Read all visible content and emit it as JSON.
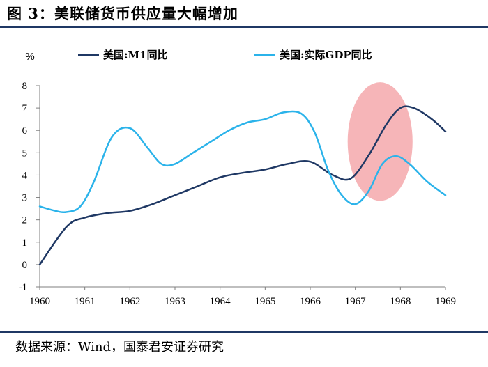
{
  "header": {
    "title": "图 3：美联储货币供应量大幅增加"
  },
  "footer": {
    "source": "数据来源：Wind，国泰君安证券研究"
  },
  "chart_data": {
    "type": "line",
    "unit_label": "%",
    "x": [
      1960,
      1961,
      1962,
      1963,
      1964,
      1965,
      1966,
      1967,
      1968,
      1969
    ],
    "xlim": [
      1960,
      1969
    ],
    "ylim": [
      -1,
      8
    ],
    "yticks": [
      -1,
      0,
      1,
      2,
      3,
      4,
      5,
      6,
      7,
      8
    ],
    "grid": false,
    "legend": "top",
    "series": [
      {
        "name": "美国:M1同比",
        "color": "#1f3864",
        "points": [
          [
            1960.0,
            0.0
          ],
          [
            1960.6,
            1.7
          ],
          [
            1961.0,
            2.1
          ],
          [
            1961.5,
            2.3
          ],
          [
            1962.0,
            2.4
          ],
          [
            1962.5,
            2.7
          ],
          [
            1963.0,
            3.1
          ],
          [
            1963.5,
            3.5
          ],
          [
            1964.0,
            3.9
          ],
          [
            1964.5,
            4.1
          ],
          [
            1965.0,
            4.25
          ],
          [
            1965.5,
            4.5
          ],
          [
            1966.0,
            4.6
          ],
          [
            1966.5,
            4.0
          ],
          [
            1966.9,
            3.85
          ],
          [
            1967.3,
            4.9
          ],
          [
            1967.7,
            6.3
          ],
          [
            1968.0,
            7.0
          ],
          [
            1968.3,
            7.0
          ],
          [
            1968.7,
            6.5
          ],
          [
            1969.0,
            5.95
          ]
        ]
      },
      {
        "name": "美国:实际GDP同比",
        "color": "#2bb3ea",
        "points": [
          [
            1960.0,
            2.6
          ],
          [
            1960.35,
            2.4
          ],
          [
            1960.6,
            2.35
          ],
          [
            1960.9,
            2.6
          ],
          [
            1961.2,
            3.7
          ],
          [
            1961.6,
            5.7
          ],
          [
            1962.0,
            6.1
          ],
          [
            1962.4,
            5.2
          ],
          [
            1962.7,
            4.5
          ],
          [
            1963.0,
            4.5
          ],
          [
            1963.4,
            5.0
          ],
          [
            1963.8,
            5.5
          ],
          [
            1964.2,
            6.0
          ],
          [
            1964.6,
            6.35
          ],
          [
            1965.0,
            6.5
          ],
          [
            1965.4,
            6.8
          ],
          [
            1965.8,
            6.75
          ],
          [
            1966.1,
            5.9
          ],
          [
            1966.4,
            4.2
          ],
          [
            1966.7,
            3.1
          ],
          [
            1967.0,
            2.7
          ],
          [
            1967.3,
            3.3
          ],
          [
            1967.6,
            4.5
          ],
          [
            1967.9,
            4.85
          ],
          [
            1968.2,
            4.5
          ],
          [
            1968.6,
            3.7
          ],
          [
            1969.0,
            3.1
          ]
        ]
      }
    ],
    "highlight": {
      "shape": "ellipse",
      "color": "#f4a8ab",
      "center": [
        1967.55,
        5.5
      ],
      "rx_years": 0.72,
      "ry_units": 2.65
    }
  }
}
